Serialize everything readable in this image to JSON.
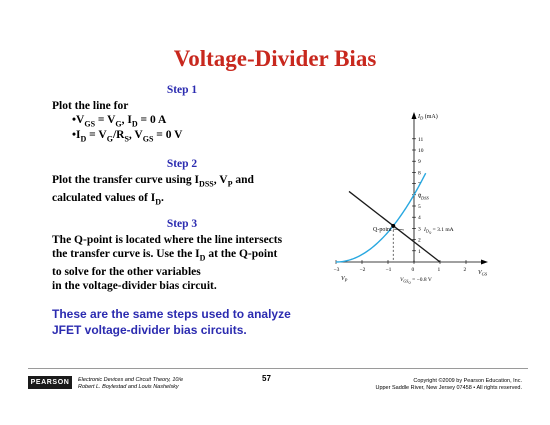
{
  "title": "Voltage-Divider Bias",
  "step1": {
    "heading": "Step 1",
    "intro": "Plot the line for",
    "bullet1": {
      "a": "•V",
      "a_sub": "GS",
      "b": " = V",
      "b_sub": "G",
      "c": ", I",
      "c_sub": "D",
      "d": " = 0 A"
    },
    "bullet2": {
      "a": "•I",
      "a_sub": "D",
      "b": " = V",
      "b_sub": "G",
      "c": "/R",
      "c_sub": "S",
      "d": ", V",
      "d_sub": "GS",
      "e": " = 0 V"
    }
  },
  "step2": {
    "heading": "Step 2",
    "line1_a": "Plot the transfer curve using I",
    "line1_sub1": "DSS",
    "line1_b": ", V",
    "line1_sub2": "P",
    "line1_c": " and",
    "line2_a": "calculated values of I",
    "line2_sub": "D",
    "line2_b": "."
  },
  "step3": {
    "heading": "Step 3",
    "line1": "The Q-point is located where the line intersects",
    "line2_a": "the transfer curve is. Use the I",
    "line2_sub": "D",
    "line2_b": " at the Q-point",
    "line3": "to solve for the other variables",
    "line4": "in the voltage-divider bias circuit."
  },
  "summary": {
    "line1": "These are the same steps used to analyze",
    "line2": "JFET voltage-divider bias circuits."
  },
  "graph": {
    "y_axis_label": "I",
    "y_axis_label_sub": "D",
    "y_axis_unit": " (mA)",
    "x_axis_label": "V",
    "x_axis_label_sub": "GS",
    "y_ticks": [
      "11",
      "10",
      "9",
      "8",
      "7",
      "6",
      "5",
      "4",
      "3",
      "2",
      "1"
    ],
    "x_ticks": [
      "−3",
      "−2",
      "−1",
      "0",
      "1",
      "2"
    ],
    "vp_label": "V",
    "vp_label_sub": "P",
    "idss_label": "I",
    "idss_label_sub": "DSS",
    "q_point_label": "Q-point",
    "idq_label": "I",
    "idq_sub": "D",
    "idq_sub2": "Q",
    "idq_value": " = 3.1 mA",
    "vgsq_label": "V",
    "vgsq_sub": "GS",
    "vgsq_sub2": "Q",
    "vgsq_value": " = −0.8 V",
    "curve_color": "#29a8e0",
    "line_color": "#1a1a1a"
  },
  "footer": {
    "logo": "PEARSON",
    "book_line1": "Electronic Devices and Circuit Theory, 10/e",
    "book_line2": "Robert L. Boylestad and Louis Nashelsky",
    "page_number": "57",
    "copyright_line1": "Copyright ©2009 by Pearson Education, Inc.",
    "copyright_line2": "Upper Saddle River, New Jersey 07458 • All rights reserved."
  }
}
